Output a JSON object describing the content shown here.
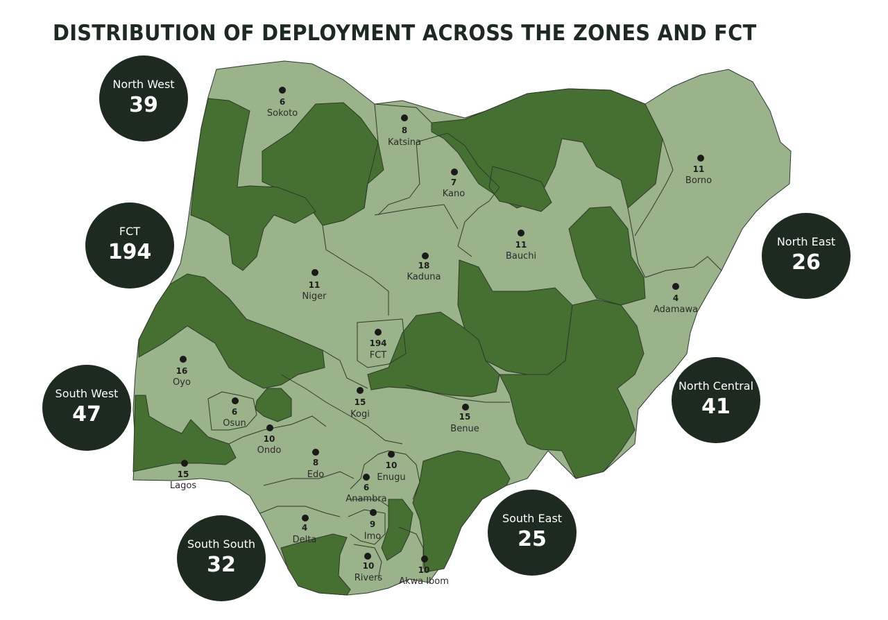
{
  "title": "DISTRIBUTION OF DEPLOYMENT ACROSS THE ZONES AND FCT",
  "colors": {
    "light_state": "#9ab38a",
    "dark_state": "#466f32",
    "zone_circle": "#1d2a20"
  },
  "zones": [
    {
      "name": "North West",
      "value": "39"
    },
    {
      "name": "FCT",
      "value": "194"
    },
    {
      "name": "South West",
      "value": "47"
    },
    {
      "name": "South South",
      "value": "32"
    },
    {
      "name": "South East",
      "value": "25"
    },
    {
      "name": "North Central",
      "value": "41"
    },
    {
      "name": "North East",
      "value": "26"
    }
  ],
  "states": [
    {
      "name": "Sokoto",
      "value": "6"
    },
    {
      "name": "Katsina",
      "value": "8"
    },
    {
      "name": "Kano",
      "value": "7"
    },
    {
      "name": "Borno",
      "value": "11"
    },
    {
      "name": "Bauchi",
      "value": "11"
    },
    {
      "name": "Kaduna",
      "value": "18"
    },
    {
      "name": "Niger",
      "value": "11"
    },
    {
      "name": "Adamawa",
      "value": "4"
    },
    {
      "name": "FCT",
      "value": "194"
    },
    {
      "name": "Oyo",
      "value": "16"
    },
    {
      "name": "Kogi",
      "value": "15"
    },
    {
      "name": "Osun",
      "value": "6"
    },
    {
      "name": "Benue",
      "value": "15"
    },
    {
      "name": "Ondo",
      "value": "10"
    },
    {
      "name": "Edo",
      "value": "8"
    },
    {
      "name": "Enugu",
      "value": "10"
    },
    {
      "name": "Lagos",
      "value": "15"
    },
    {
      "name": "Anambra",
      "value": "6"
    },
    {
      "name": "Imo",
      "value": "9"
    },
    {
      "name": "Delta",
      "value": "4"
    },
    {
      "name": "Rivers",
      "value": "10"
    },
    {
      "name": "Akwa Ibom",
      "value": "10"
    }
  ]
}
